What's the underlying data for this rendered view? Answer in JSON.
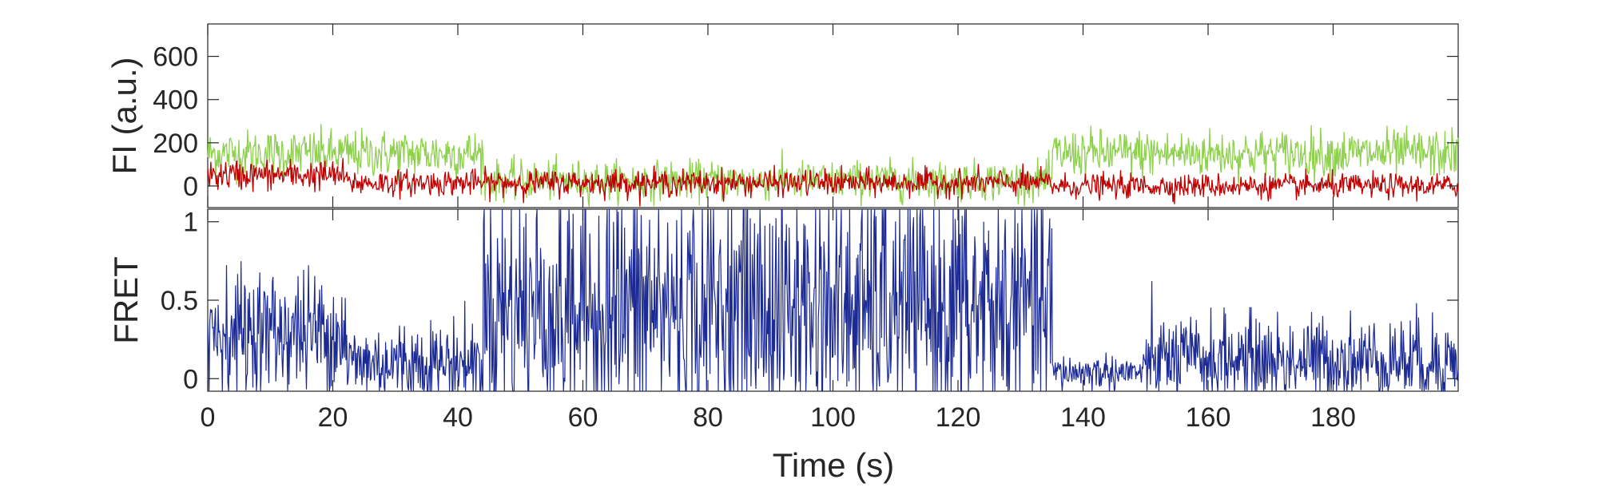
{
  "chart_data": [
    {
      "type": "line",
      "panel": "top",
      "ylabel": "FI (a.u.)",
      "xlabel": "",
      "xlim": [
        0,
        200
      ],
      "ylim": [
        -100,
        750
      ],
      "yticks": [
        0,
        200,
        400,
        600
      ],
      "ytick_labels": [
        "0",
        "200",
        "400",
        "600"
      ],
      "grid": false,
      "series": [
        {
          "color": "#8fd14f",
          "segments": [
            {
              "t0": 0,
              "t1": 44,
              "mean": 150,
              "noise": 55
            },
            {
              "t0": 44,
              "t1": 135,
              "mean": 25,
              "noise": 45
            },
            {
              "t0": 135,
              "t1": 200,
              "mean": 150,
              "noise": 55
            }
          ]
        },
        {
          "color": "#c00000",
          "segments": [
            {
              "t0": 0,
              "t1": 22,
              "mean": 50,
              "noise": 35
            },
            {
              "t0": 22,
              "t1": 135,
              "mean": 15,
              "noise": 30
            },
            {
              "t0": 135,
              "t1": 200,
              "mean": 0,
              "noise": 28
            }
          ]
        }
      ]
    },
    {
      "type": "line",
      "panel": "bottom",
      "ylabel": "FRET",
      "xlabel": "Time (s)",
      "xlim": [
        0,
        200
      ],
      "ylim": [
        -0.08,
        1.08
      ],
      "xticks": [
        0,
        20,
        40,
        60,
        80,
        100,
        120,
        140,
        160,
        180
      ],
      "xtick_labels": [
        "0",
        "20",
        "40",
        "60",
        "80",
        "100",
        "120",
        "140",
        "160",
        "180"
      ],
      "yticks": [
        0,
        0.5,
        1
      ],
      "ytick_labels": [
        "0",
        "0.5",
        "1"
      ],
      "grid": false,
      "series": [
        {
          "color": "#1c2a94",
          "segments": [
            {
              "t0": 0,
              "t1": 22,
              "mean": 0.3,
              "noise": 0.2
            },
            {
              "t0": 22,
              "t1": 44,
              "mean": 0.1,
              "noise": 0.14
            },
            {
              "t0": 44,
              "t1": 135,
              "mean": 0.45,
              "noise": 0.42
            },
            {
              "t0": 135,
              "t1": 150,
              "mean": 0.04,
              "noise": 0.06
            },
            {
              "t0": 150,
              "t1": 200,
              "mean": 0.12,
              "noise": 0.14
            }
          ]
        }
      ]
    }
  ]
}
